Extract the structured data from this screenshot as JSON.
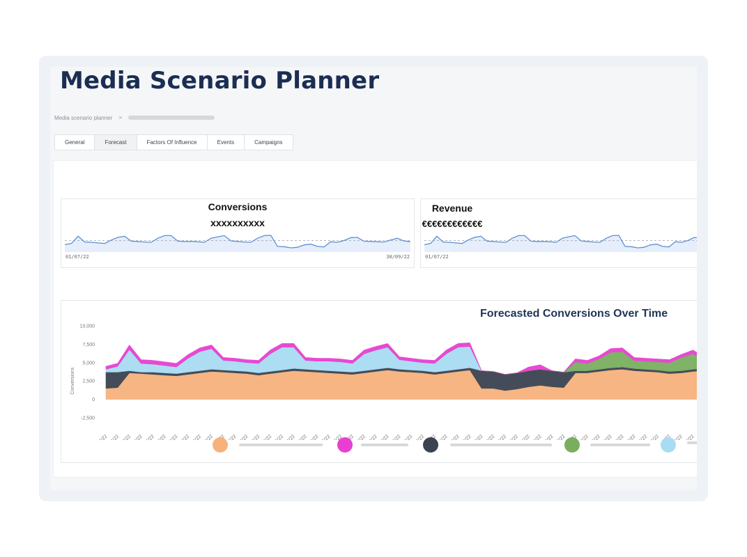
{
  "header": {
    "title": "Media Scenario Planner"
  },
  "breadcrumb": {
    "root": "Media scenario planner",
    "separator": ">"
  },
  "tabs": [
    {
      "label": "General"
    },
    {
      "label": "Forecast"
    },
    {
      "label": "Factors Of Influence"
    },
    {
      "label": "Events"
    },
    {
      "label": "Campaigns"
    }
  ],
  "kpi_cards": {
    "conversions": {
      "title": "Conversions",
      "value": "xxxxxxxxxx",
      "start_date": "01/07/22",
      "end_date": "30/09/22"
    },
    "revenue": {
      "title": "Revenue",
      "value": "€€€€€€€€€€€€",
      "start_date": "01/07/22"
    }
  },
  "colors": {
    "orange": "#f6b27d",
    "magenta": "#e83fd2",
    "dark": "#3b4351",
    "green": "#7aae5f",
    "light_blue": "#a8dcf3",
    "spark_line": "#5b8fd6",
    "spark_fill": "#e6eefb"
  },
  "chart_data": {
    "type": "area",
    "title": "Forecasted Conversions Over Time",
    "ylabel": "Conversions",
    "ylim": [
      -2500,
      10000
    ],
    "yticks": [
      10000,
      7500,
      5000,
      2500,
      0,
      -2500
    ],
    "ytick_labels": [
      "10,000",
      "7,500",
      "5,000",
      "2,500",
      "0",
      "-2,500"
    ],
    "x": [
      "01/07/22",
      "02/07/22",
      "03/07/22",
      "04/07/22",
      "05/07/22",
      "06/07/22",
      "07/07/22",
      "08/07/22",
      "09/07/22",
      "10/07/22",
      "11/07/22",
      "12/07/22",
      "13/07/22",
      "14/07/22",
      "15/07/22",
      "16/07/22",
      "17/07/22",
      "18/07/22",
      "19/07/22",
      "20/07/22",
      "21/07/22",
      "22/07/22",
      "23/07/22",
      "24/07/22",
      "25/07/22",
      "26/07/22",
      "27/07/22",
      "28/07/22",
      "29/07/22",
      "30/07/22",
      "31/07/22",
      "01/08/22",
      "02/08/22",
      "03/08/22",
      "04/08/22",
      "05/08/22",
      "06/08/22",
      "07/08/22",
      "08/08/22",
      "09/08/22",
      "10/08/22",
      "11/08/22",
      "12/08/22",
      "13/08/22",
      "14/08/22",
      "15/08/22",
      "16/08/22",
      "17/08/22",
      "18/08/22",
      "19/08/22",
      "20/08/22",
      "21/08/22",
      "22/08/22"
    ],
    "series": [
      {
        "name": "orange",
        "values": [
          1500,
          1600,
          3600,
          3500,
          3400,
          3300,
          3200,
          3400,
          3600,
          3800,
          3700,
          3600,
          3500,
          3300,
          3500,
          3700,
          3900,
          3800,
          3700,
          3600,
          3500,
          3400,
          3600,
          3800,
          4000,
          3800,
          3700,
          3600,
          3400,
          3600,
          3800,
          4000,
          1500,
          1500,
          1200,
          1400,
          1700,
          1900,
          1700,
          1600,
          3600,
          3600,
          3800,
          4000,
          4100,
          3900,
          3800,
          3700,
          3500,
          3600,
          3800,
          3900,
          3600
        ]
      },
      {
        "name": "dark",
        "values": [
          2200,
          2100,
          300,
          200,
          300,
          300,
          300,
          300,
          300,
          300,
          300,
          300,
          300,
          300,
          300,
          300,
          300,
          300,
          300,
          300,
          300,
          300,
          300,
          300,
          300,
          300,
          300,
          300,
          300,
          300,
          300,
          300,
          2400,
          2300,
          2200,
          2200,
          2200,
          2200,
          2200,
          2100,
          300,
          300,
          300,
          300,
          300,
          300,
          300,
          300,
          300,
          300,
          300,
          300,
          300
        ]
      },
      {
        "name": "light_blue",
        "values": [
          400,
          800,
          2900,
          1200,
          1100,
          1000,
          900,
          1900,
          2600,
          2800,
          1300,
          1300,
          1200,
          1300,
          2400,
          3100,
          2900,
          1200,
          1200,
          1300,
          1300,
          1200,
          2300,
          2600,
          2800,
          1300,
          1200,
          1100,
          1200,
          2300,
          3000,
          2900,
          0,
          0,
          0,
          0,
          0,
          0,
          0,
          0,
          0,
          0,
          0,
          0,
          0,
          0,
          0,
          0,
          0,
          0,
          0,
          0,
          0
        ]
      },
      {
        "name": "green",
        "values": [
          0,
          0,
          0,
          0,
          0,
          0,
          0,
          0,
          0,
          0,
          0,
          0,
          0,
          0,
          0,
          0,
          0,
          0,
          0,
          0,
          0,
          0,
          0,
          0,
          0,
          0,
          0,
          0,
          0,
          0,
          0,
          0,
          0,
          0,
          0,
          0,
          0,
          0,
          0,
          0,
          1200,
          1000,
          1400,
          2100,
          2100,
          1100,
          1100,
          1100,
          1200,
          1800,
          2100,
          1200,
          1200
        ]
      },
      {
        "name": "magenta",
        "values": [
          400,
          400,
          600,
          500,
          500,
          500,
          500,
          500,
          500,
          500,
          400,
          400,
          400,
          400,
          500,
          500,
          500,
          400,
          400,
          400,
          400,
          400,
          500,
          500,
          500,
          400,
          400,
          400,
          400,
          500,
          500,
          500,
          0,
          0,
          0,
          0,
          500,
          600,
          0,
          0,
          400,
          400,
          400,
          500,
          500,
          400,
          400,
          400,
          400,
          400,
          500,
          400,
          400
        ]
      }
    ],
    "legend": [
      "orange",
      "magenta",
      "dark",
      "green",
      "light_blue"
    ]
  }
}
